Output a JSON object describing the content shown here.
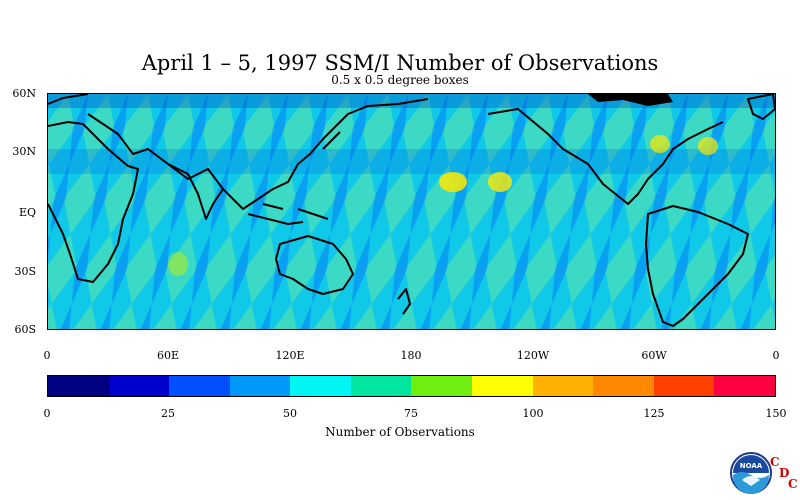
{
  "title": "April 1 – 5, 1997 SSM/I Number of Observations",
  "subtitle": "0.5 x 0.5 degree boxes",
  "lat_labels": [
    "60N",
    "30N",
    "EQ",
    "30S",
    "60S"
  ],
  "lon_labels": [
    "0",
    "60E",
    "120E",
    "180",
    "120W",
    "60W",
    "0"
  ],
  "colorbar": {
    "title": "Number of Observations",
    "tick_labels": [
      "0",
      "25",
      "50",
      "75",
      "100",
      "125",
      "150"
    ],
    "colors": [
      "#000080",
      "#0000cd",
      "#0050ff",
      "#0098f8",
      "#00f5f5",
      "#00e6a0",
      "#70ee10",
      "#ffff00",
      "#ffb000",
      "#ff8800",
      "#ff4000",
      "#ff0040"
    ]
  },
  "map": {
    "background_color": "#10c8e8",
    "swath_dense_color": "#60e8a8",
    "swath_sparse_color": "#0070ff",
    "hotspot_color": "#ffe800",
    "coastline_color": "#000000",
    "land_ice_color": "#000000"
  },
  "logo": {
    "name": "noaa-logo",
    "letters": [
      "C",
      "D",
      "C"
    ]
  }
}
